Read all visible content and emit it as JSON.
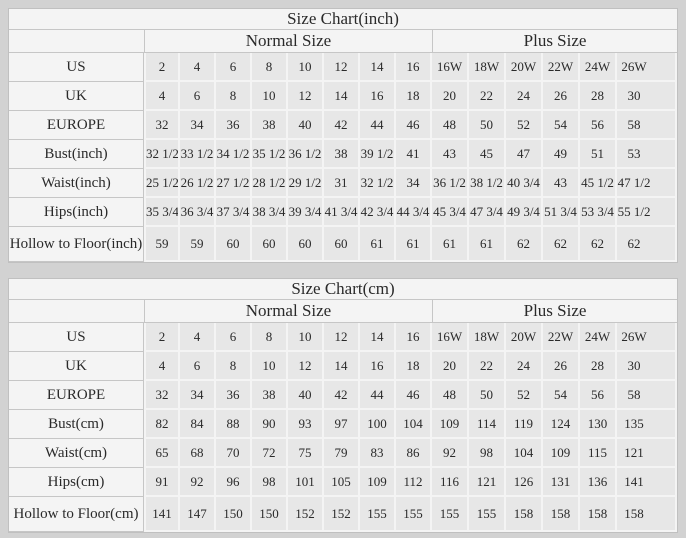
{
  "page": {
    "background": "#d2d2d2",
    "cell_background": "#e7e7e7",
    "table_background": "#f4f4f4",
    "gridline_color": "#c6c6c6",
    "text_color": "#2a2a2a"
  },
  "chart_data": [
    {
      "type": "table",
      "title": "Size Chart(inch)",
      "group_headers": [
        "Normal Size",
        "Plus Size"
      ],
      "normal_col_count": 8,
      "plus_col_count": 6,
      "rows": [
        {
          "label": "US",
          "values": [
            "2",
            "4",
            "6",
            "8",
            "10",
            "12",
            "14",
            "16",
            "16W",
            "18W",
            "20W",
            "22W",
            "24W",
            "26W"
          ]
        },
        {
          "label": "UK",
          "values": [
            "4",
            "6",
            "8",
            "10",
            "12",
            "14",
            "16",
            "18",
            "20",
            "22",
            "24",
            "26",
            "28",
            "30"
          ]
        },
        {
          "label": "EUROPE",
          "values": [
            "32",
            "34",
            "36",
            "38",
            "40",
            "42",
            "44",
            "46",
            "48",
            "50",
            "52",
            "54",
            "56",
            "58"
          ]
        },
        {
          "label": "Bust(inch)",
          "values": [
            "32 1/2",
            "33 1/2",
            "34 1/2",
            "35 1/2",
            "36 1/2",
            "38",
            "39 1/2",
            "41",
            "43",
            "45",
            "47",
            "49",
            "51",
            "53"
          ]
        },
        {
          "label": "Waist(inch)",
          "values": [
            "25 1/2",
            "26 1/2",
            "27 1/2",
            "28 1/2",
            "29 1/2",
            "31",
            "32 1/2",
            "34",
            "36 1/2",
            "38 1/2",
            "40 3/4",
            "43",
            "45 1/2",
            "47 1/2"
          ]
        },
        {
          "label": "Hips(inch)",
          "values": [
            "35 3/4",
            "36 3/4",
            "37 3/4",
            "38 3/4",
            "39 3/4",
            "41 3/4",
            "42 3/4",
            "44 3/4",
            "45 3/4",
            "47 3/4",
            "49 3/4",
            "51 3/4",
            "53 3/4",
            "55 1/2"
          ]
        },
        {
          "label": "Hollow to Floor(inch)",
          "values": [
            "59",
            "59",
            "60",
            "60",
            "60",
            "60",
            "61",
            "61",
            "61",
            "61",
            "62",
            "62",
            "62",
            "62"
          ]
        }
      ]
    },
    {
      "type": "table",
      "title": "Size Chart(cm)",
      "group_headers": [
        "Normal Size",
        "Plus Size"
      ],
      "normal_col_count": 8,
      "plus_col_count": 6,
      "rows": [
        {
          "label": "US",
          "values": [
            "2",
            "4",
            "6",
            "8",
            "10",
            "12",
            "14",
            "16",
            "16W",
            "18W",
            "20W",
            "22W",
            "24W",
            "26W"
          ]
        },
        {
          "label": "UK",
          "values": [
            "4",
            "6",
            "8",
            "10",
            "12",
            "14",
            "16",
            "18",
            "20",
            "22",
            "24",
            "26",
            "28",
            "30"
          ]
        },
        {
          "label": "EUROPE",
          "values": [
            "32",
            "34",
            "36",
            "38",
            "40",
            "42",
            "44",
            "46",
            "48",
            "50",
            "52",
            "54",
            "56",
            "58"
          ]
        },
        {
          "label": "Bust(cm)",
          "values": [
            "82",
            "84",
            "88",
            "90",
            "93",
            "97",
            "100",
            "104",
            "109",
            "114",
            "119",
            "124",
            "130",
            "135"
          ]
        },
        {
          "label": "Waist(cm)",
          "values": [
            "65",
            "68",
            "70",
            "72",
            "75",
            "79",
            "83",
            "86",
            "92",
            "98",
            "104",
            "109",
            "115",
            "121"
          ]
        },
        {
          "label": "Hips(cm)",
          "values": [
            "91",
            "92",
            "96",
            "98",
            "101",
            "105",
            "109",
            "112",
            "116",
            "121",
            "126",
            "131",
            "136",
            "141"
          ]
        },
        {
          "label": "Hollow to Floor(cm)",
          "values": [
            "141",
            "147",
            "150",
            "150",
            "152",
            "152",
            "155",
            "155",
            "155",
            "155",
            "158",
            "158",
            "158",
            "158"
          ]
        }
      ]
    }
  ]
}
